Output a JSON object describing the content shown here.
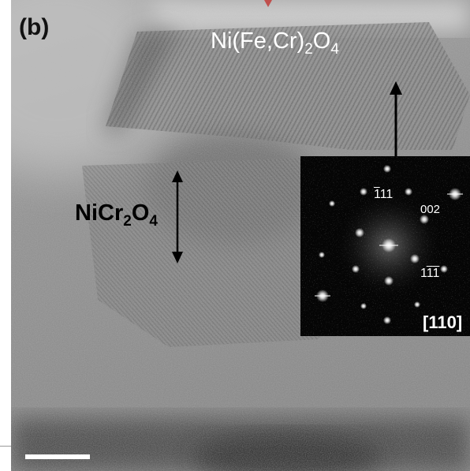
{
  "panel_label": "(b)",
  "phase_top": {
    "base": "Ni(Fe,Cr)",
    "sub": "2",
    "rest": "O",
    "sub2": "4"
  },
  "phase_mid": {
    "base": "NiCr",
    "sub": "2",
    "rest": "O",
    "sub2": "4"
  },
  "fft": {
    "index1": {
      "bar": "1",
      "plain": "11"
    },
    "index2": "002",
    "index3": {
      "plain": "1",
      "bar1": "1",
      "bar2": "1"
    },
    "zone_axis": "[110]"
  },
  "colors": {
    "annotation_light": "#ffffff",
    "annotation_dark": "#000000",
    "marker_accent": "#c0504d"
  }
}
